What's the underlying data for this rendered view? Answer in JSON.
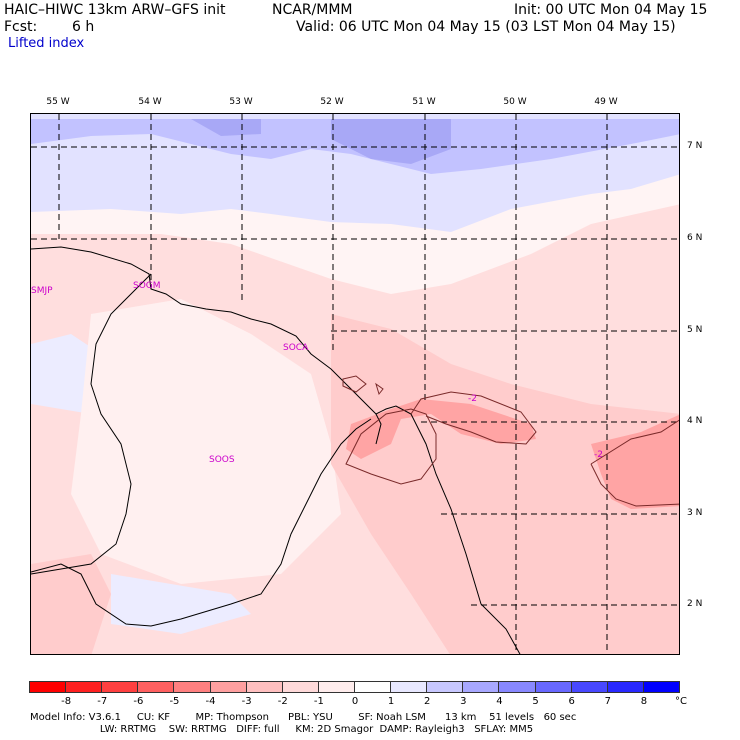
{
  "header": {
    "model": "HAIC–HIWC 13km ARW–GFS init",
    "org": "NCAR/MMM",
    "init": "Init: 00 UTC Mon 04 May 15",
    "fcst_label": "Fcst:",
    "fcst_value": "6 h",
    "valid": "Valid: 06 UTC Mon 04 May 15 (03 LST Mon 04 May 15)",
    "field": "Lifted index"
  },
  "axes": {
    "longitudes": [
      "55 W",
      "54 W",
      "53 W",
      "52 W",
      "51 W",
      "50 W",
      "49 W"
    ],
    "latitudes": [
      "7 N",
      "6 N",
      "5 N",
      "4 N",
      "3 N",
      "2 N"
    ]
  },
  "stations": [
    "SMJP",
    "SOGM",
    "SOCA",
    "SOOS"
  ],
  "contour_label": "-2",
  "colorscale": {
    "colors": [
      "#ff0000",
      "#ff2020",
      "#ff4040",
      "#ff6060",
      "#ff8080",
      "#ffa0a0",
      "#ffc0c0",
      "#ffdada",
      "#ffeded",
      "#ffffff",
      "#e8e8ff",
      "#c8c8ff",
      "#a8a8ff",
      "#8888ff",
      "#6868ff",
      "#4848ff",
      "#2828ff",
      "#0000ff"
    ],
    "ticks": [
      "-8",
      "-7",
      "-6",
      "-5",
      "-4",
      "-3",
      "-2",
      "-1",
      "0",
      "1",
      "2",
      "3",
      "4",
      "5",
      "6",
      "7",
      "8"
    ],
    "unit": "°C"
  },
  "info": {
    "line1": "Model Info: V3.6.1     CU: KF        MP: Thompson      PBL: YSU        SF: Noah LSM      13 km    51 levels   60 sec",
    "line2": "                      LW: RRTMG    SW: RRTMG   DIFF: full     KM: 2D Smagor  DAMP: Rayleigh3   SFLAY: MM5"
  }
}
